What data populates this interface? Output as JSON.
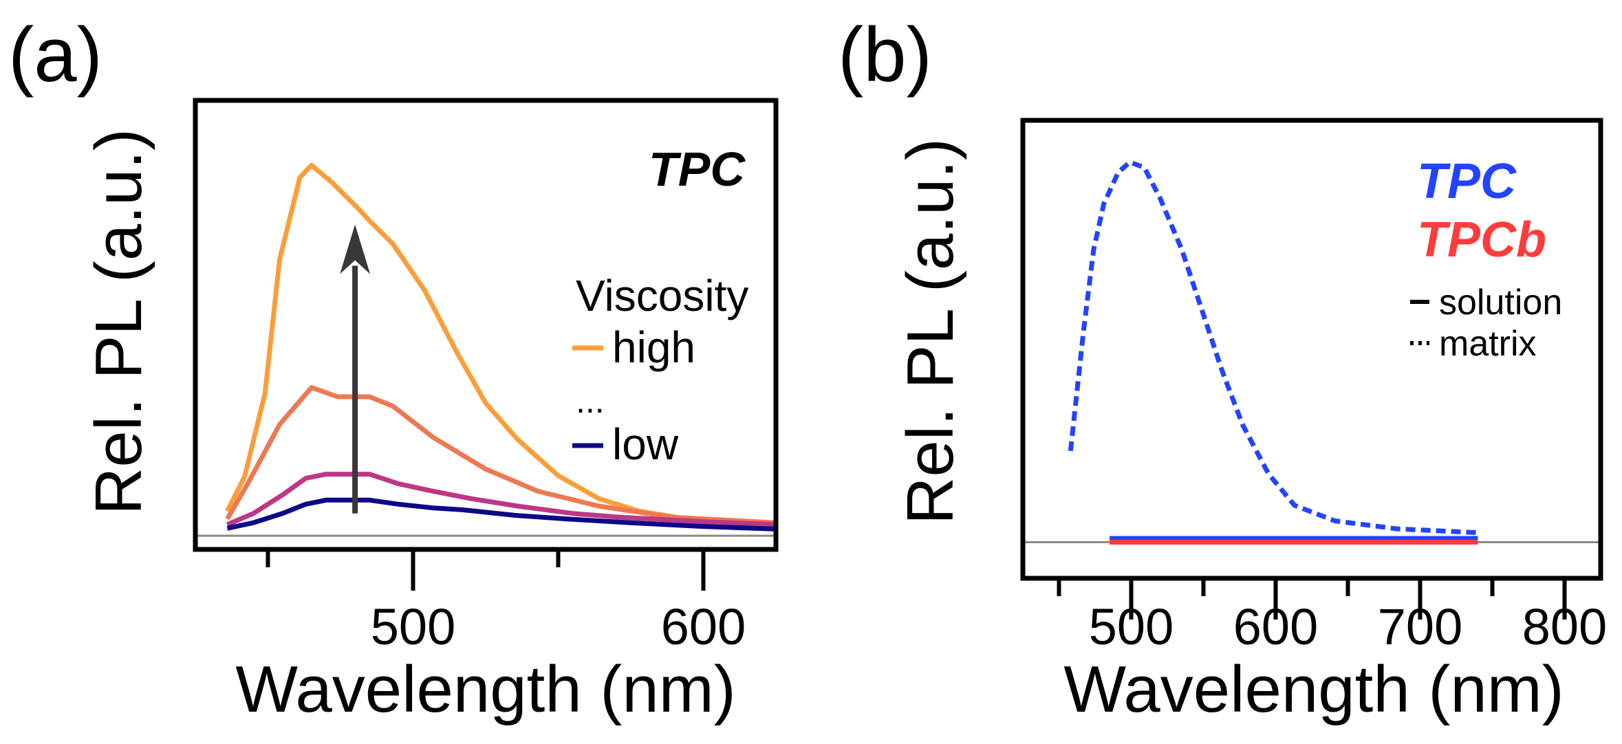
{
  "panel_labels": {
    "a": "(a)",
    "b": "(b)"
  },
  "chart_data": [
    {
      "type": "line",
      "panel": "(a)",
      "xlabel": "Wavelength (nm)",
      "ylabel": "Rel. PL (a.u.)",
      "xlim": [
        425,
        625
      ],
      "ylim": [
        -0.037,
        1.175
      ],
      "x_major_ticks": [
        500,
        600
      ],
      "x_minor_ticks": [
        450,
        550
      ],
      "x_tick_labels": [
        "500",
        "600"
      ],
      "y_ticks_shown": false,
      "baseline": 0,
      "grid": false,
      "annotation": "TPC",
      "arrow": {
        "x": 480,
        "from": 0.06,
        "to": 0.84,
        "color": "#3a3836"
      },
      "legend": {
        "title": "Viscosity",
        "entries": [
          "high",
          "...",
          "low"
        ],
        "placement": "right"
      },
      "series": [
        {
          "name": "high",
          "color": "#fb9e3a",
          "x": [
            436,
            442,
            449,
            454,
            461,
            465,
            472,
            481,
            485,
            493,
            504,
            515,
            525,
            536,
            550,
            564,
            578,
            600,
            625
          ],
          "y": [
            0.066,
            0.16,
            0.385,
            0.745,
            0.967,
            1.0,
            0.954,
            0.884,
            0.85,
            0.788,
            0.662,
            0.496,
            0.358,
            0.26,
            0.162,
            0.1,
            0.066,
            0.038,
            0.024
          ]
        },
        {
          "color": "#ed7953",
          "x": [
            436,
            443,
            454,
            465,
            474,
            485,
            493,
            507,
            525,
            543,
            564,
            589,
            625
          ],
          "y": [
            0.045,
            0.14,
            0.3,
            0.4,
            0.375,
            0.375,
            0.35,
            0.265,
            0.18,
            0.12,
            0.08,
            0.05,
            0.035
          ]
        },
        {
          "color": "#bd3786",
          "x": [
            436,
            445,
            455,
            463,
            470,
            478,
            485,
            495,
            507,
            520,
            536,
            555,
            571,
            600,
            625
          ],
          "y": [
            0.03,
            0.06,
            0.11,
            0.155,
            0.166,
            0.166,
            0.166,
            0.14,
            0.12,
            0.1,
            0.08,
            0.06,
            0.05,
            0.038,
            0.03
          ]
        },
        {
          "name": "low",
          "color": "#0d0887",
          "x": [
            436,
            445,
            455,
            463,
            470,
            478,
            485,
            495,
            507,
            517,
            535,
            553,
            575,
            600,
            625
          ],
          "y": [
            0.02,
            0.035,
            0.06,
            0.085,
            0.096,
            0.096,
            0.096,
            0.085,
            0.075,
            0.07,
            0.055,
            0.045,
            0.035,
            0.025,
            0.018
          ]
        }
      ]
    },
    {
      "type": "line",
      "panel": "(b)",
      "xlabel": "Wavelength (nm)",
      "ylabel": "Rel. PL (a.u.)",
      "xlim": [
        425,
        825
      ],
      "ylim": [
        -0.095,
        1.11
      ],
      "x_major_ticks": [
        500,
        600,
        700,
        800
      ],
      "x_minor_ticks": [
        450,
        550,
        650,
        750
      ],
      "x_tick_labels": [
        "500",
        "600",
        "700",
        "800"
      ],
      "y_ticks_shown": false,
      "baseline": 0,
      "grid": false,
      "legend": {
        "entries": [
          "TPC",
          "TPCb",
          "solution",
          "matrix"
        ],
        "placement": "top-right"
      },
      "series": [
        {
          "name": "TPC matrix",
          "color": "#2244ff",
          "style": "dotted",
          "x": [
            458,
            467,
            474,
            481,
            491,
            499,
            509,
            520,
            535,
            549,
            563,
            577,
            595,
            613,
            641,
            684,
            740
          ],
          "y": [
            0.24,
            0.556,
            0.77,
            0.89,
            0.973,
            1.0,
            0.986,
            0.905,
            0.77,
            0.61,
            0.45,
            0.31,
            0.18,
            0.097,
            0.056,
            0.035,
            0.025
          ]
        },
        {
          "name": "TPC solution",
          "color": "#2244ff",
          "style": "solid",
          "x": [
            485,
            740
          ],
          "y": [
            0.01,
            0.01
          ]
        },
        {
          "name": "TPCb solution",
          "color": "#ff3b3b",
          "style": "solid",
          "x": [
            485,
            740
          ],
          "y": [
            0.0,
            0.0
          ]
        },
        {
          "name": "TPCb matrix",
          "color": "#ff3b3b",
          "style": "dotted",
          "x": [
            485,
            740
          ],
          "y": [
            0.0,
            0.0
          ]
        }
      ]
    }
  ]
}
